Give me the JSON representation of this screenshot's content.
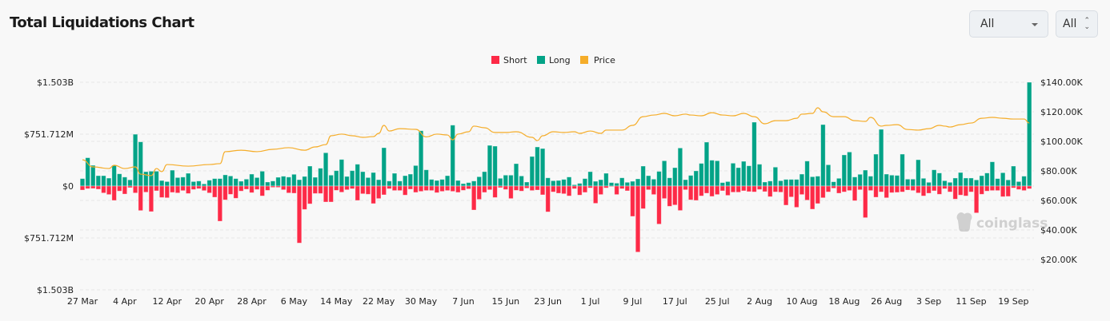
{
  "header": {
    "title": "Total Liquidations Chart"
  },
  "controls": {
    "range_select": {
      "value": "All",
      "icon": "caret-down-icon"
    },
    "symbol_select": {
      "value": "All",
      "icon": "up-down-icon"
    }
  },
  "watermark": "coinglass",
  "colors": {
    "short": "#fd2a47",
    "long": "#03a387",
    "price": "#f5ad2a",
    "grid": "#e6e6e6"
  },
  "chart_data": {
    "type": "bar",
    "title": "",
    "legend": {
      "placement": "top-center",
      "entries": [
        "Short",
        "Long",
        "Price"
      ]
    },
    "x_start": "27 Mar",
    "x_end": "22 Sep",
    "x_ticks": [
      "27 Mar",
      "4 Apr",
      "12 Apr",
      "20 Apr",
      "28 Apr",
      "6 May",
      "14 May",
      "22 May",
      "30 May",
      "7 Jun",
      "15 Jun",
      "23 Jun",
      "1 Jul",
      "9 Jul",
      "17 Jul",
      "25 Jul",
      "2 Aug",
      "10 Aug",
      "18 Aug",
      "26 Aug",
      "3 Sep",
      "11 Sep",
      "19 Sep"
    ],
    "y_left": {
      "unit": "USD millions",
      "range": [
        -1503,
        1503
      ],
      "ticks": [
        "$1.503B",
        "$751.712M",
        "$0",
        "$751.712M",
        "$1.503B"
      ]
    },
    "y_right": {
      "unit": "USD thousands",
      "range": [
        0,
        140
      ],
      "ticks": [
        "$140.00K",
        "$120.00K",
        "$100.00K",
        "$80.00K",
        "$60.00K",
        "$40.00K",
        "$20.00K"
      ]
    },
    "grid": true,
    "series": [
      {
        "name": "Long",
        "axis": "left",
        "values": [
          108,
          410,
          300,
          150,
          150,
          115,
          300,
          177,
          130,
          90,
          750,
          640,
          208,
          215,
          215,
          80,
          65,
          230,
          123,
          130,
          185,
          65,
          73,
          31,
          85,
          108,
          108,
          162,
          146,
          108,
          70,
          100,
          173,
          123,
          215,
          58,
          73,
          127,
          142,
          130,
          170,
          92,
          139,
          289,
          127,
          258,
          482,
          158,
          223,
          385,
          139,
          223,
          316,
          208,
          123,
          196,
          92,
          555,
          73,
          185,
          73,
          150,
          173,
          297,
          801,
          235,
          96,
          81,
          96,
          150,
          882,
          81,
          35,
          50,
          73,
          135,
          208,
          589,
          578,
          112,
          158,
          158,
          324,
          146,
          58,
          428,
          566,
          543,
          119,
          77,
          81,
          96,
          131,
          19,
          39,
          108,
          208,
          69,
          92,
          185,
          50,
          42,
          119,
          54,
          69,
          104,
          289,
          150,
          100,
          212,
          366,
          119,
          266,
          551,
          92,
          154,
          220,
          328,
          636,
          374,
          366,
          50,
          65,
          331,
          266,
          358,
          293,
          925,
          316,
          58,
          73,
          274,
          77,
          96,
          96,
          96,
          173,
          362,
          135,
          143,
          890,
          308,
          62,
          112,
          451,
          493,
          131,
          170,
          231,
          143,
          462,
          821,
          173,
          158,
          154,
          462,
          100,
          100,
          381,
          112,
          54,
          235,
          189,
          77,
          54,
          116,
          196,
          116,
          116,
          89,
          150,
          189,
          351,
          108,
          193,
          89,
          289,
          65,
          143,
          1503
        ]
      },
      {
        "name": "Short",
        "axis": "left",
        "values": [
          58,
          38,
          35,
          46,
          100,
          123,
          208,
          73,
          116,
          23,
          100,
          355,
          89,
          370,
          69,
          166,
          170,
          92,
          100,
          66,
          108,
          50,
          38,
          66,
          100,
          162,
          509,
          200,
          120,
          177,
          73,
          46,
          96,
          50,
          143,
          62,
          19,
          19,
          54,
          100,
          104,
          825,
          339,
          258,
          108,
          108,
          231,
          231,
          62,
          89,
          54,
          39,
          208,
          112,
          119,
          254,
          181,
          127,
          39,
          65,
          65,
          131,
          46,
          92,
          77,
          65,
          65,
          96,
          77,
          65,
          77,
          92,
          62,
          42,
          347,
          193,
          92,
          54,
          166,
          23,
          50,
          181,
          62,
          73,
          31,
          65,
          58,
          127,
          374,
          85,
          104,
          112,
          143,
          39,
          131,
          92,
          27,
          250,
          123,
          27,
          8,
          123,
          39,
          69,
          439,
          956,
          328,
          54,
          123,
          551,
          181,
          293,
          274,
          354,
          54,
          200,
          208,
          143,
          104,
          150,
          123,
          69,
          135,
          89,
          89,
          69,
          81,
          85,
          50,
          81,
          154,
          85,
          89,
          277,
          158,
          308,
          123,
          204,
          335,
          254,
          170,
          85,
          31,
          104,
          85,
          65,
          212,
          54,
          458,
          65,
          162,
          85,
          170,
          96,
          92,
          85,
          58,
          65,
          100,
          143,
          104,
          69,
          119,
          39,
          85,
          189,
          131,
          143,
          85,
          389,
          119,
          73,
          65,
          65,
          154,
          150,
          27,
          50,
          65,
          39
        ]
      },
      {
        "name": "Price",
        "axis": "right",
        "type": "line",
        "points": [
          [
            "27 Mar",
            87.5
          ],
          [
            "29 Mar",
            82.7
          ],
          [
            "1 Apr",
            81.6
          ],
          [
            "2 Apr",
            83.8
          ],
          [
            "4 Apr",
            81.6
          ],
          [
            "6 Apr",
            82.7
          ],
          [
            "7 Apr",
            77.8
          ],
          [
            "9 Apr",
            76.8
          ],
          [
            "10 Apr",
            81.6
          ],
          [
            "11 Apr",
            79.5
          ],
          [
            "12 Apr",
            84.3
          ],
          [
            "16 Apr",
            83.2
          ],
          [
            "20 Apr",
            84.3
          ],
          [
            "22 Apr",
            84.9
          ],
          [
            "23 Apr",
            93.0
          ],
          [
            "26 Apr",
            94.0
          ],
          [
            "29 Apr",
            93.0
          ],
          [
            "2 May",
            94.6
          ],
          [
            "5 May",
            95.7
          ],
          [
            "8 May",
            94.0
          ],
          [
            "10 May",
            96.2
          ],
          [
            "12 May",
            97.8
          ],
          [
            "13 May",
            103.8
          ],
          [
            "15 May",
            104.9
          ],
          [
            "17 May",
            103.8
          ],
          [
            "19 May",
            102.7
          ],
          [
            "21 May",
            103.2
          ],
          [
            "22 May",
            105.4
          ],
          [
            "23 May",
            110.8
          ],
          [
            "24 May",
            107.0
          ],
          [
            "26 May",
            108.6
          ],
          [
            "29 May",
            108.1
          ],
          [
            "31 May",
            103.0
          ],
          [
            "2 Jun",
            104.9
          ],
          [
            "4 Jun",
            104.3
          ],
          [
            "5 Jun",
            101.0
          ],
          [
            "6 Jun",
            104.9
          ],
          [
            "8 Jun",
            106.5
          ],
          [
            "9 Jun",
            110.3
          ],
          [
            "11 Jun",
            109.2
          ],
          [
            "13 Jun",
            106.0
          ],
          [
            "15 Jun",
            106.0
          ],
          [
            "17 Jun",
            106.5
          ],
          [
            "20 Jun",
            102.7
          ],
          [
            "21 Jun",
            100.5
          ],
          [
            "22 Jun",
            103.8
          ],
          [
            "24 Jun",
            106.5
          ],
          [
            "26 Jun",
            106.0
          ],
          [
            "28 Jun",
            106.5
          ],
          [
            "29 Jun",
            105.4
          ],
          [
            "1 Jul",
            107.0
          ],
          [
            "3 Jul",
            105.4
          ],
          [
            "4 Jul",
            107.6
          ],
          [
            "5 Jul",
            107.6
          ],
          [
            "7 Jul",
            107.6
          ],
          [
            "9 Jul",
            110.8
          ],
          [
            "11 Jul",
            116.7
          ],
          [
            "13 Jul",
            117.8
          ],
          [
            "15 Jul",
            118.9
          ],
          [
            "17 Jul",
            117.3
          ],
          [
            "19 Jul",
            118.4
          ],
          [
            "20 Jul",
            117.8
          ],
          [
            "22 Jul",
            117.3
          ],
          [
            "24 Jul",
            119.4
          ],
          [
            "26 Jul",
            117.8
          ],
          [
            "28 Jul",
            117.3
          ],
          [
            "30 Jul",
            118.9
          ],
          [
            "1 Aug",
            116.7
          ],
          [
            "3 Aug",
            111.9
          ],
          [
            "5 Aug",
            114.0
          ],
          [
            "7 Aug",
            114.0
          ],
          [
            "9 Aug",
            115.6
          ],
          [
            "10 Aug",
            118.4
          ],
          [
            "12 Aug",
            118.9
          ],
          [
            "13 Aug",
            122.7
          ],
          [
            "14 Aug",
            120.0
          ],
          [
            "16 Aug",
            116.7
          ],
          [
            "18 Aug",
            116.7
          ],
          [
            "20 Aug",
            114.0
          ],
          [
            "22 Aug",
            113.5
          ],
          [
            "23 Aug",
            116.2
          ],
          [
            "25 Aug",
            110.3
          ],
          [
            "26 Aug",
            110.8
          ],
          [
            "28 Aug",
            111.3
          ],
          [
            "30 Aug",
            108.0
          ],
          [
            "1 Sep",
            107.6
          ],
          [
            "3 Sep",
            108.6
          ],
          [
            "5 Sep",
            110.8
          ],
          [
            "6 Sep",
            110.3
          ],
          [
            "7 Sep",
            109.7
          ],
          [
            "9 Sep",
            111.3
          ],
          [
            "11 Sep",
            112.4
          ],
          [
            "13 Sep",
            115.6
          ],
          [
            "15 Sep",
            116.2
          ],
          [
            "17 Sep",
            115.6
          ],
          [
            "19 Sep",
            115.1
          ],
          [
            "21 Sep",
            115.1
          ],
          [
            "22 Sep",
            112.4
          ]
        ]
      }
    ]
  }
}
